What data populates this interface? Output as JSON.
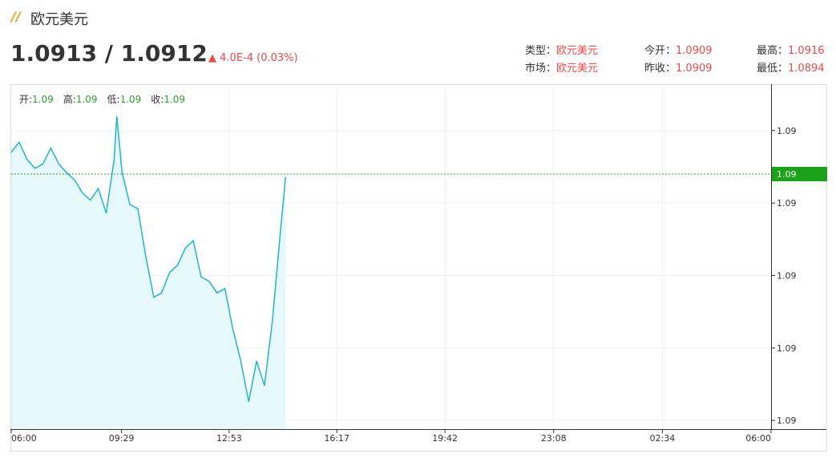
{
  "header": {
    "title": "欧元美元",
    "price": "1.0913 / 1.0912",
    "change": "4.0E-4 (0.03%)",
    "info": [
      {
        "label": "类型：",
        "value": "欧元美元"
      },
      {
        "label": "今开：",
        "value": "1.0909"
      },
      {
        "label": "最高：",
        "value": "1.0916"
      },
      {
        "label": "市场：",
        "value": "欧元美元"
      },
      {
        "label": "昨收：",
        "value": "1.0909"
      },
      {
        "label": "最低：",
        "value": "1.0894"
      }
    ]
  },
  "ohlc": [
    {
      "label": "开:",
      "value": "1.09"
    },
    {
      "label": "高:",
      "value": "1.09"
    },
    {
      "label": "低:",
      "value": "1.09"
    },
    {
      "label": "收:",
      "value": "1.09"
    }
  ],
  "chart_data": {
    "type": "line",
    "color": "#1fb5cc",
    "fill": "#e6f8fa",
    "x": [
      "06:00",
      "06:15",
      "06:30",
      "06:45",
      "07:00",
      "07:15",
      "07:30",
      "07:45",
      "08:00",
      "08:15",
      "08:30",
      "08:45",
      "09:00",
      "09:15",
      "09:20",
      "09:30",
      "09:45",
      "10:00",
      "10:15",
      "10:30",
      "10:45",
      "11:00",
      "11:15",
      "11:30",
      "11:45",
      "12:00",
      "12:15",
      "12:30",
      "12:45",
      "13:00",
      "13:15",
      "13:30",
      "13:45",
      "14:00",
      "14:15",
      "14:30",
      "14:40"
    ],
    "values": [
      1.09135,
      1.09142,
      1.0913,
      1.09124,
      1.09127,
      1.09138,
      1.09127,
      1.09121,
      1.09116,
      1.09107,
      1.09102,
      1.0911,
      1.09093,
      1.0913,
      1.0916,
      1.09121,
      1.09099,
      1.09096,
      1.09063,
      1.09035,
      1.09038,
      1.09052,
      1.09057,
      1.09069,
      1.09074,
      1.09049,
      1.09046,
      1.09038,
      1.09041,
      1.09013,
      1.08991,
      1.08963,
      1.08991,
      1.08974,
      1.09019,
      1.0908,
      1.09118
    ],
    "xlim": [
      "06:00",
      "06:00"
    ],
    "xticks": [
      "06:00",
      "09:29",
      "12:53",
      "16:17",
      "19:42",
      "23:08",
      "02:34",
      "06:00"
    ],
    "ylim": [
      1.08944,
      1.09182
    ],
    "yticks": [
      {
        "value": 1.0915,
        "label": "1.09"
      },
      {
        "value": 1.091,
        "label": "1.09"
      },
      {
        "value": 1.0905,
        "label": "1.09"
      },
      {
        "value": 1.09,
        "label": "1.09"
      },
      {
        "value": 1.0895,
        "label": "1.09"
      }
    ],
    "last": {
      "value": 1.0912,
      "label": "1.09"
    },
    "grid": true
  }
}
